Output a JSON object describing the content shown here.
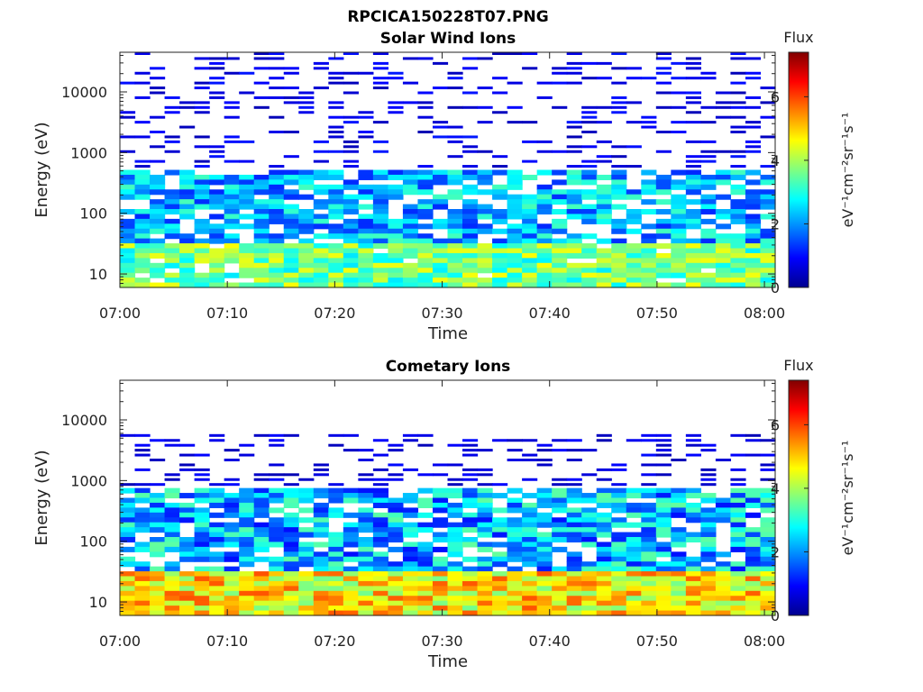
{
  "figure": {
    "title": "RPCICA150228T07.PNG"
  },
  "colorscale": [
    "#00008f",
    "#0000ff",
    "#0080ff",
    "#00ffff",
    "#80ff80",
    "#ffff00",
    "#ff8000",
    "#ff0000",
    "#800000"
  ],
  "chart_data": [
    {
      "type": "heatmap",
      "title": "Solar Wind Ions",
      "xlabel": "Time",
      "ylabel": "Energy (eV)",
      "xticks": [
        "07:00",
        "07:10",
        "07:20",
        "07:30",
        "07:40",
        "07:50",
        "08:00"
      ],
      "xrange": [
        "07:00",
        "08:01"
      ],
      "yscale": "log",
      "yticks": [
        10,
        100,
        1000,
        10000
      ],
      "yticklabels": [
        "10",
        "100",
        "1000",
        "10000"
      ],
      "ylim": [
        6,
        45000
      ],
      "colorbar": {
        "title": "Flux",
        "label": "eV⁻¹cm⁻²sr⁻¹s⁻¹",
        "ticks": [
          0,
          2,
          4,
          6
        ],
        "tickLabels": [
          "0",
          "2",
          "4",
          "6"
        ],
        "range": [
          0,
          7.4
        ]
      },
      "profile": {
        "high_band": {
          "energy_max_eV": 45000,
          "energy_min_eV": 550,
          "fill_fraction": 0.3,
          "flux_range": [
            0.3,
            1.1
          ]
        },
        "mid_band": {
          "energy_max_eV": 550,
          "energy_min_eV": 35,
          "fill_fraction": 0.75,
          "flux_range": [
            1.2,
            3.3
          ]
        },
        "low_band": {
          "energy_max_eV": 35,
          "energy_min_eV": 6,
          "fill_fraction": 0.95,
          "flux_range": [
            2.6,
            4.6
          ]
        }
      }
    },
    {
      "type": "heatmap",
      "title": "Cometary Ions",
      "xlabel": "Time",
      "ylabel": "Energy (eV)",
      "xticks": [
        "07:00",
        "07:10",
        "07:20",
        "07:30",
        "07:40",
        "07:50",
        "08:00"
      ],
      "xrange": [
        "07:00",
        "08:01"
      ],
      "yscale": "log",
      "yticks": [
        10,
        100,
        1000,
        10000
      ],
      "yticklabels": [
        "10",
        "100",
        "1000",
        "10000"
      ],
      "ylim": [
        6,
        45000
      ],
      "colorbar": {
        "title": "Flux",
        "label": "eV⁻¹cm⁻²sr⁻¹s⁻¹",
        "ticks": [
          0,
          2,
          4,
          6
        ],
        "tickLabels": [
          "0",
          "2",
          "4",
          "6"
        ],
        "range": [
          0,
          7.4
        ]
      },
      "profile": {
        "high_band": {
          "energy_max_eV": 5500,
          "energy_min_eV": 700,
          "fill_fraction": 0.3,
          "flux_range": [
            0.3,
            1.0
          ]
        },
        "mid_band": {
          "energy_max_eV": 700,
          "energy_min_eV": 30,
          "fill_fraction": 0.8,
          "flux_range": [
            1.0,
            3.5
          ]
        },
        "low_band": {
          "energy_max_eV": 30,
          "energy_min_eV": 6,
          "fill_fraction": 1.0,
          "flux_range": [
            3.6,
            5.9
          ]
        }
      }
    }
  ]
}
